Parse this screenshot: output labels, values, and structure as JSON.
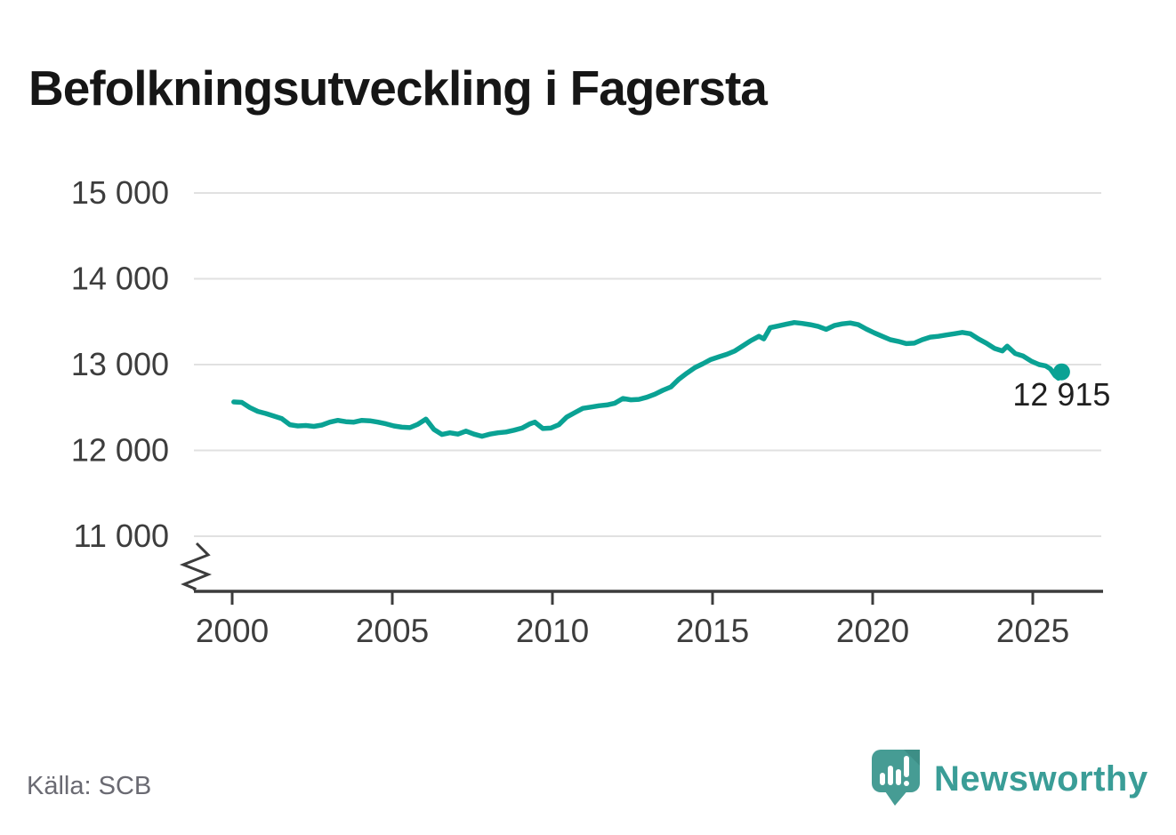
{
  "title": "Befolkningsutveckling i Fagersta",
  "source": "Källa: SCB",
  "brand": {
    "name": "Newsworthy",
    "wordmark_color": "#3a9d97",
    "bubble_color": "#469c94"
  },
  "chart_data": {
    "type": "line",
    "title": "Befolkningsutveckling i Fagersta",
    "xlabel": "",
    "ylabel": "",
    "ylim": [
      11000,
      15000
    ],
    "x_range_years": [
      2000,
      2026
    ],
    "axis_break": true,
    "grid": true,
    "legend_position": "none",
    "yticks": [
      {
        "value": 15000,
        "label": "15 000"
      },
      {
        "value": 14000,
        "label": "14 000"
      },
      {
        "value": 13000,
        "label": "13 000"
      },
      {
        "value": 12000,
        "label": "12 000"
      },
      {
        "value": 11000,
        "label": "11 000"
      }
    ],
    "xticks": [
      2000,
      2005,
      2010,
      2015,
      2020,
      2025
    ],
    "line_color": "#0aa294",
    "grid_color": "#e1e1e1",
    "axis_color": "#3c3c3c",
    "end_label": "12 915",
    "end_value": 12915,
    "points": [
      [
        2000.05,
        12565
      ],
      [
        2000.3,
        12560
      ],
      [
        2000.55,
        12500
      ],
      [
        2000.8,
        12455
      ],
      [
        2001.05,
        12430
      ],
      [
        2001.3,
        12400
      ],
      [
        2001.55,
        12370
      ],
      [
        2001.8,
        12300
      ],
      [
        2002.05,
        12285
      ],
      [
        2002.3,
        12290
      ],
      [
        2002.55,
        12280
      ],
      [
        2002.8,
        12295
      ],
      [
        2003.05,
        12330
      ],
      [
        2003.3,
        12350
      ],
      [
        2003.55,
        12335
      ],
      [
        2003.8,
        12330
      ],
      [
        2004.05,
        12350
      ],
      [
        2004.3,
        12345
      ],
      [
        2004.55,
        12330
      ],
      [
        2004.8,
        12310
      ],
      [
        2005.05,
        12285
      ],
      [
        2005.3,
        12270
      ],
      [
        2005.55,
        12265
      ],
      [
        2005.8,
        12305
      ],
      [
        2006.05,
        12365
      ],
      [
        2006.3,
        12245
      ],
      [
        2006.55,
        12185
      ],
      [
        2006.8,
        12205
      ],
      [
        2007.05,
        12190
      ],
      [
        2007.3,
        12225
      ],
      [
        2007.55,
        12190
      ],
      [
        2007.8,
        12165
      ],
      [
        2008.05,
        12190
      ],
      [
        2008.3,
        12205
      ],
      [
        2008.55,
        12215
      ],
      [
        2008.8,
        12235
      ],
      [
        2009.05,
        12260
      ],
      [
        2009.3,
        12310
      ],
      [
        2009.45,
        12330
      ],
      [
        2009.7,
        12255
      ],
      [
        2009.95,
        12260
      ],
      [
        2010.2,
        12300
      ],
      [
        2010.45,
        12390
      ],
      [
        2010.7,
        12440
      ],
      [
        2010.95,
        12490
      ],
      [
        2011.2,
        12505
      ],
      [
        2011.45,
        12520
      ],
      [
        2011.7,
        12530
      ],
      [
        2011.95,
        12550
      ],
      [
        2012.2,
        12605
      ],
      [
        2012.45,
        12590
      ],
      [
        2012.7,
        12595
      ],
      [
        2012.95,
        12620
      ],
      [
        2013.2,
        12655
      ],
      [
        2013.45,
        12700
      ],
      [
        2013.7,
        12740
      ],
      [
        2013.95,
        12830
      ],
      [
        2014.2,
        12900
      ],
      [
        2014.45,
        12965
      ],
      [
        2014.7,
        13010
      ],
      [
        2014.95,
        13060
      ],
      [
        2015.2,
        13090
      ],
      [
        2015.45,
        13120
      ],
      [
        2015.7,
        13160
      ],
      [
        2015.95,
        13220
      ],
      [
        2016.2,
        13280
      ],
      [
        2016.45,
        13330
      ],
      [
        2016.6,
        13300
      ],
      [
        2016.8,
        13430
      ],
      [
        2017.05,
        13450
      ],
      [
        2017.3,
        13470
      ],
      [
        2017.55,
        13490
      ],
      [
        2017.8,
        13480
      ],
      [
        2018.05,
        13465
      ],
      [
        2018.3,
        13445
      ],
      [
        2018.55,
        13410
      ],
      [
        2018.8,
        13455
      ],
      [
        2019.05,
        13475
      ],
      [
        2019.3,
        13485
      ],
      [
        2019.55,
        13465
      ],
      [
        2019.8,
        13415
      ],
      [
        2020.05,
        13370
      ],
      [
        2020.3,
        13330
      ],
      [
        2020.55,
        13290
      ],
      [
        2020.8,
        13270
      ],
      [
        2021.05,
        13245
      ],
      [
        2021.3,
        13250
      ],
      [
        2021.55,
        13290
      ],
      [
        2021.8,
        13320
      ],
      [
        2022.05,
        13330
      ],
      [
        2022.3,
        13345
      ],
      [
        2022.55,
        13360
      ],
      [
        2022.8,
        13375
      ],
      [
        2023.05,
        13360
      ],
      [
        2023.3,
        13300
      ],
      [
        2023.55,
        13250
      ],
      [
        2023.8,
        13190
      ],
      [
        2024.05,
        13160
      ],
      [
        2024.2,
        13215
      ],
      [
        2024.45,
        13130
      ],
      [
        2024.7,
        13100
      ],
      [
        2024.95,
        13040
      ],
      [
        2025.2,
        13000
      ],
      [
        2025.4,
        12985
      ],
      [
        2025.55,
        12950
      ],
      [
        2025.7,
        12870
      ],
      [
        2025.8,
        12840
      ],
      [
        2025.9,
        12915
      ]
    ]
  }
}
